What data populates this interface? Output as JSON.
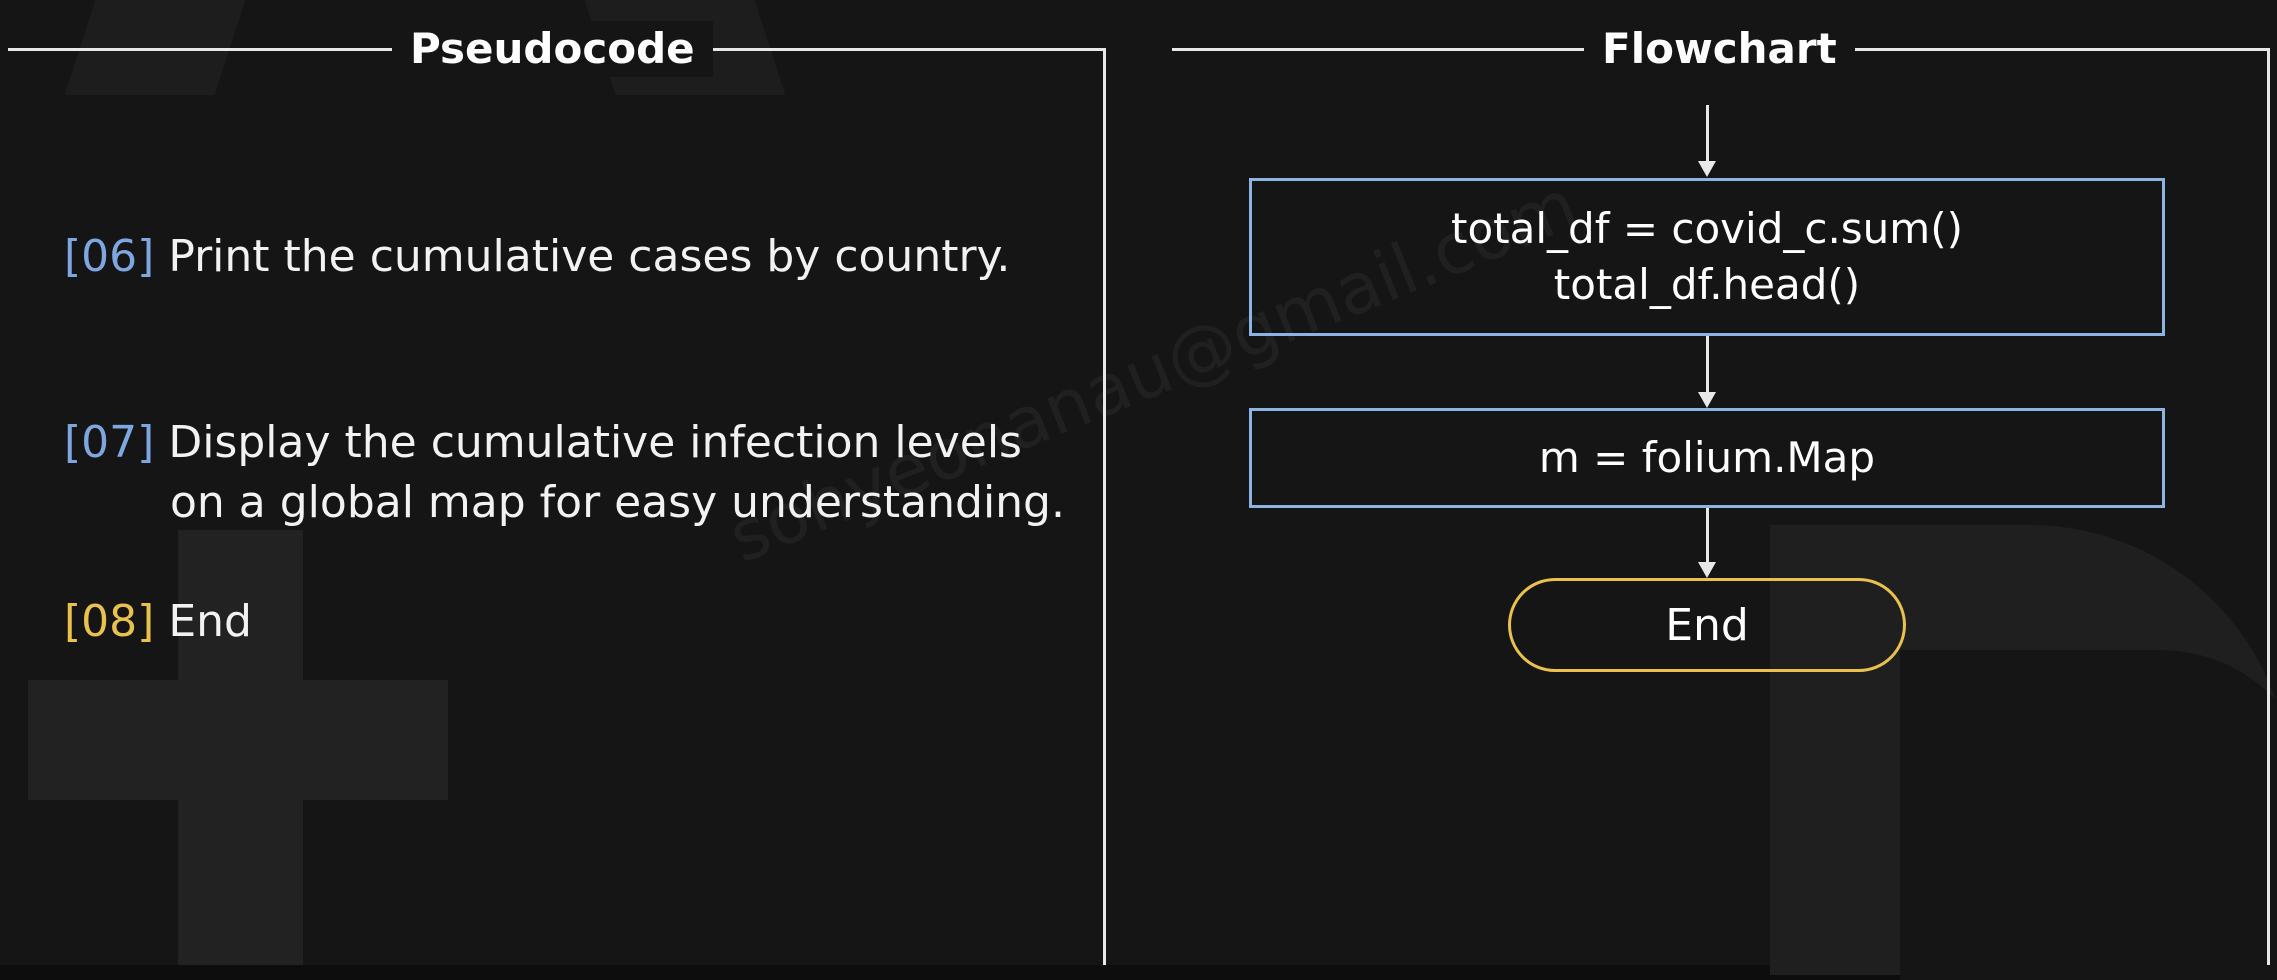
{
  "pseudocode": {
    "title": "Pseudocode",
    "steps": [
      {
        "num": "[06]",
        "lines": [
          "Print the cumulative cases by country."
        ]
      },
      {
        "num": "[07]",
        "lines": [
          "Display the cumulative infection levels",
          "on a global map for easy understanding."
        ]
      },
      {
        "num": "[08]",
        "lines": [
          "End"
        ]
      }
    ]
  },
  "flowchart": {
    "title": "Flowchart",
    "process_1": [
      "total_df = covid_c.sum()",
      "total_df.head()"
    ],
    "process_2": "m = folium.Map",
    "terminal": "End"
  },
  "watermark": "sohyeonanau@gmail.com",
  "colors": {
    "step_blue": "#7ea6e0",
    "step_yellow": "#e9c24e",
    "process_border": "#8db4e2",
    "terminal_border": "#e9c24e",
    "background": "#151515"
  }
}
